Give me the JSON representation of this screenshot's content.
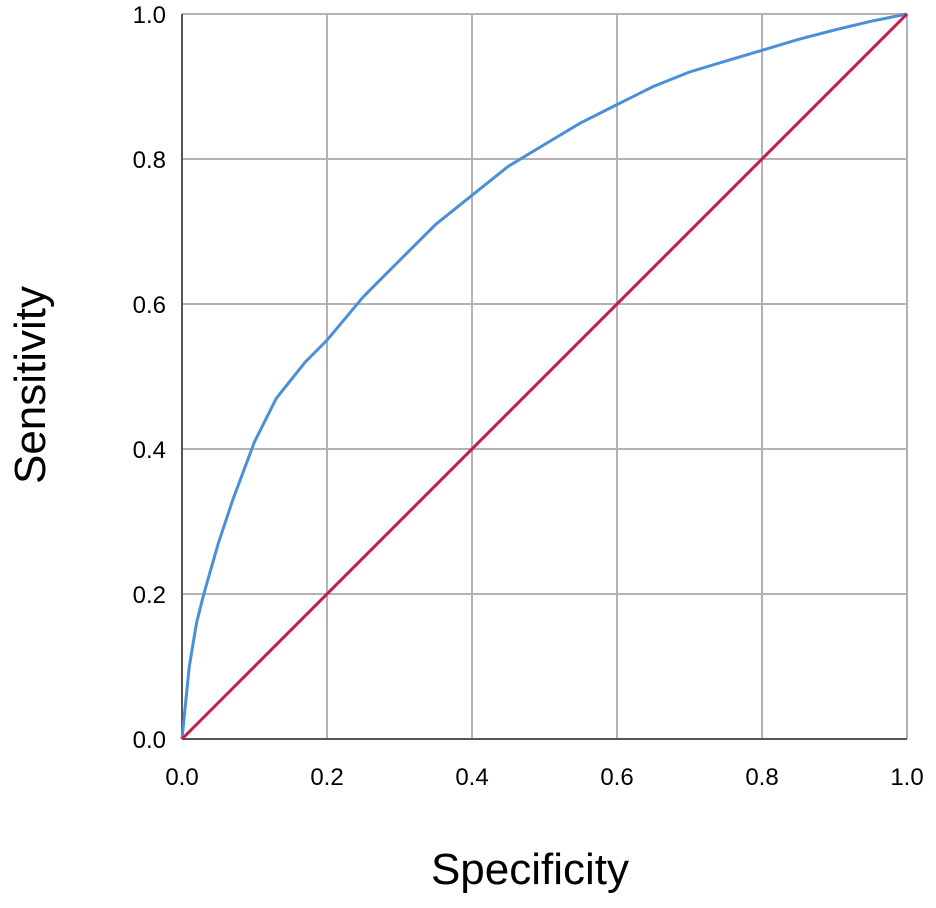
{
  "chart_data": {
    "type": "line",
    "title": "",
    "xlabel": "Specificity",
    "ylabel": "Sensitivity",
    "xlim": [
      0.0,
      1.0
    ],
    "ylim": [
      0.0,
      1.0
    ],
    "x_ticks": [
      "0.0",
      "0.2",
      "0.4",
      "0.6",
      "0.8",
      "1.0"
    ],
    "y_ticks": [
      "0.0",
      "0.2",
      "0.4",
      "0.6",
      "0.8",
      "1.0"
    ],
    "grid": true,
    "legend": "none",
    "series": [
      {
        "color": "#4a90d9",
        "x": [
          0.0,
          0.005,
          0.01,
          0.02,
          0.03,
          0.05,
          0.07,
          0.1,
          0.13,
          0.17,
          0.2,
          0.25,
          0.3,
          0.35,
          0.4,
          0.45,
          0.5,
          0.55,
          0.6,
          0.65,
          0.7,
          0.75,
          0.8,
          0.85,
          0.9,
          0.95,
          1.0
        ],
        "y": [
          0.0,
          0.05,
          0.1,
          0.16,
          0.2,
          0.27,
          0.33,
          0.41,
          0.47,
          0.52,
          0.55,
          0.61,
          0.66,
          0.71,
          0.75,
          0.79,
          0.82,
          0.85,
          0.875,
          0.9,
          0.92,
          0.935,
          0.95,
          0.965,
          0.978,
          0.99,
          1.0
        ]
      },
      {
        "color": "#c8194b",
        "x": [
          0.0,
          1.0
        ],
        "y": [
          0.0,
          1.0
        ]
      }
    ],
    "colors": {
      "grid": "#b3b3b3",
      "axis": "#555555"
    }
  }
}
